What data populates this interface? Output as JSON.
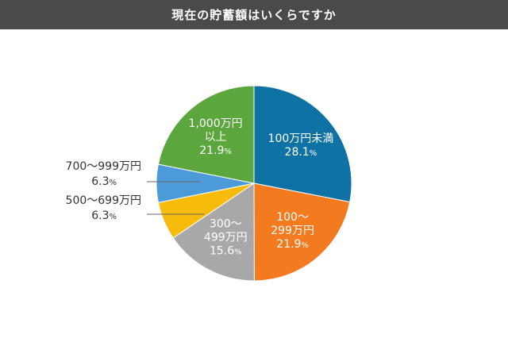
{
  "title": "現在の貯蓄額はいくらですか",
  "chart_data": {
    "type": "pie",
    "title": "現在の貯蓄額はいくらですか",
    "percent_symbol": "%",
    "start": "top",
    "direction": "clockwise",
    "slices": [
      {
        "label_lines": [
          "100万円未満"
        ],
        "value": 28.1,
        "value_text": "28.1",
        "color": "#0e73a4",
        "label_position": "inside"
      },
      {
        "label_lines": [
          "100～",
          "299万円"
        ],
        "value": 21.9,
        "value_text": "21.9",
        "color": "#f47a20",
        "label_position": "inside"
      },
      {
        "label_lines": [
          "300～",
          "499万円"
        ],
        "value": 15.6,
        "value_text": "15.6",
        "color": "#a8a8a8",
        "label_position": "inside"
      },
      {
        "label_lines": [
          "500～699万円"
        ],
        "value": 6.3,
        "value_text": "6.3",
        "color": "#f6bb0b",
        "label_position": "outside"
      },
      {
        "label_lines": [
          "700～999万円"
        ],
        "value": 6.3,
        "value_text": "6.3",
        "color": "#4d9ad8",
        "label_position": "outside"
      },
      {
        "label_lines": [
          "1,000万円",
          "以上"
        ],
        "value": 21.9,
        "value_text": "21.9",
        "color": "#5ba73d",
        "label_position": "inside"
      }
    ]
  }
}
